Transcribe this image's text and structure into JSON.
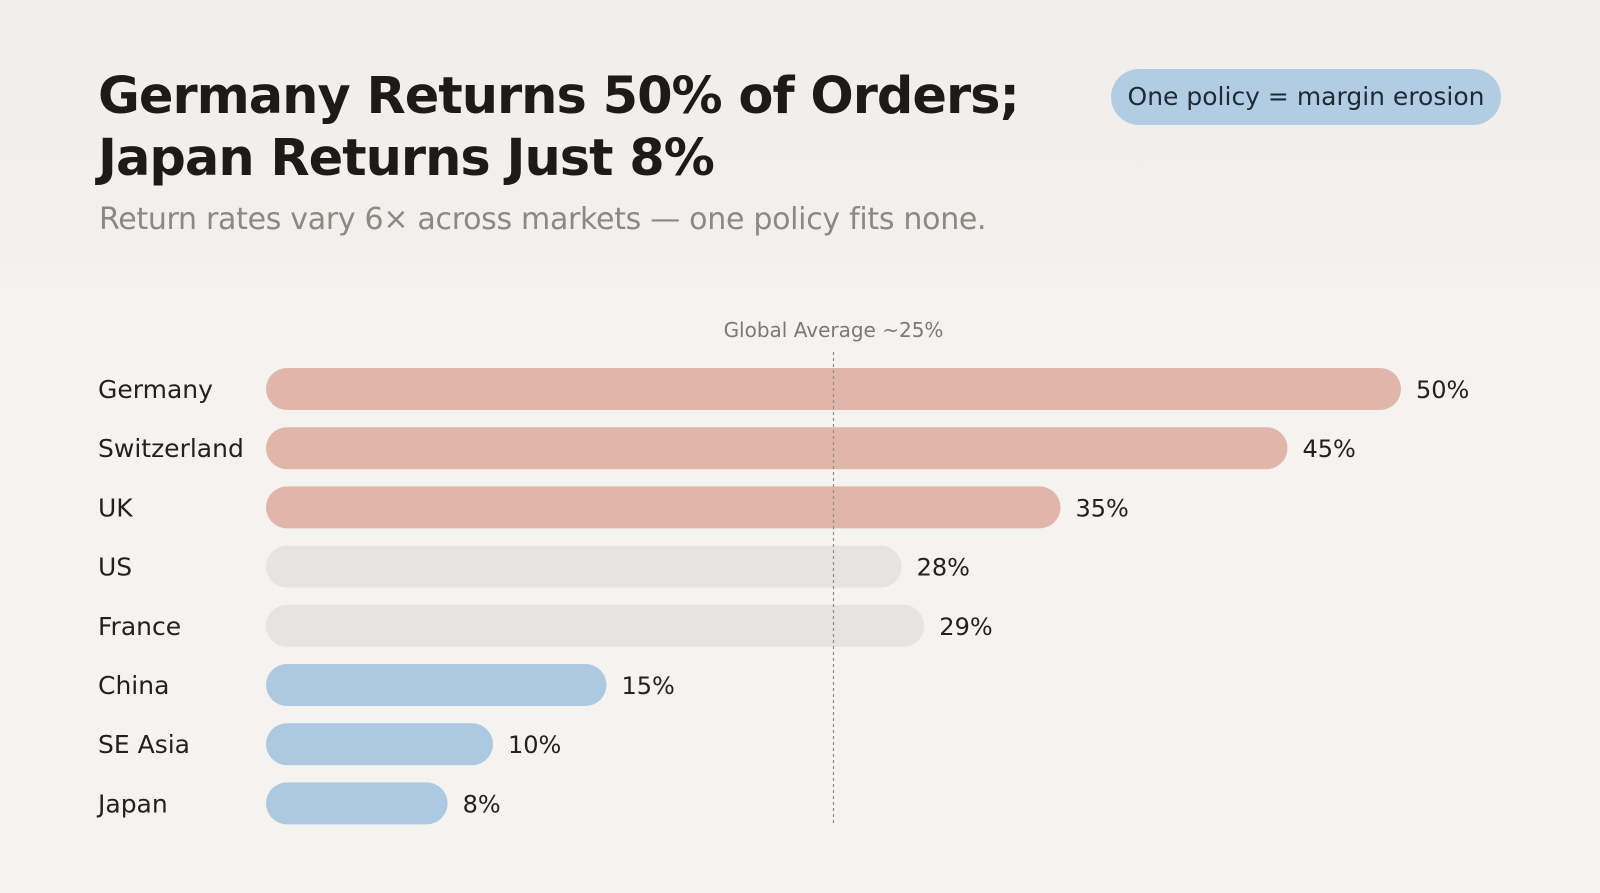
{
  "header": {
    "title_line1": "Germany Returns 50% of Orders;",
    "title_line2": "Japan Returns Just 8%",
    "subtitle": "Return rates vary 6× across markets — one policy fits none.",
    "badge": "One policy = margin erosion"
  },
  "colors": {
    "above_average": "#e0b6aa",
    "near_average": "#e6e4e2",
    "below_average": "#adc9e1",
    "badge": "#b2cde3"
  },
  "chart_data": {
    "type": "bar",
    "orientation": "horizontal",
    "categories": [
      "Germany",
      "Switzerland",
      "UK",
      "US",
      "France",
      "China",
      "SE Asia",
      "Japan"
    ],
    "values": [
      50,
      45,
      35,
      28,
      29,
      15,
      10,
      8
    ],
    "value_labels": [
      "50%",
      "45%",
      "35%",
      "28%",
      "29%",
      "15%",
      "10%",
      "8%"
    ],
    "bar_groups": [
      "above_average",
      "above_average",
      "above_average",
      "near_average",
      "near_average",
      "below_average",
      "below_average",
      "below_average"
    ],
    "xlim": [
      0,
      50
    ],
    "grid": false,
    "reference_line": {
      "value": 25,
      "label": "Global Average ~25%"
    }
  }
}
